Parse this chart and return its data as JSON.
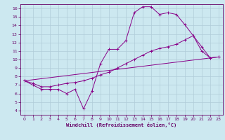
{
  "xlabel": "Windchill (Refroidissement éolien,°C)",
  "background_color": "#cce8f0",
  "grid_color": "#b0ccd8",
  "line_color": "#880088",
  "spine_color": "#660066",
  "xlim": [
    -0.5,
    23.5
  ],
  "ylim": [
    3.5,
    16.5
  ],
  "yticks": [
    4,
    5,
    6,
    7,
    8,
    9,
    10,
    11,
    12,
    13,
    14,
    15,
    16
  ],
  "xticks": [
    0,
    1,
    2,
    3,
    4,
    5,
    6,
    7,
    8,
    9,
    10,
    11,
    12,
    13,
    14,
    15,
    16,
    17,
    18,
    19,
    20,
    21,
    22,
    23
  ],
  "series": [
    {
      "x": [
        0,
        1,
        2,
        3,
        4,
        5,
        6,
        7,
        8,
        9,
        10,
        11,
        12,
        13,
        14,
        15,
        16,
        17,
        18,
        19,
        20,
        21,
        22
      ],
      "y": [
        7.5,
        7.0,
        6.5,
        6.5,
        6.5,
        6.0,
        6.5,
        4.2,
        6.3,
        9.5,
        11.2,
        11.2,
        12.2,
        15.5,
        16.2,
        16.2,
        15.3,
        15.5,
        15.3,
        14.1,
        12.8,
        11.0,
        10.2
      ]
    },
    {
      "x": [
        0,
        1,
        2,
        3,
        4,
        5,
        6,
        7,
        8,
        9,
        10,
        11,
        12,
        13,
        14,
        15,
        16,
        17,
        18,
        19,
        20,
        21,
        22,
        23
      ],
      "y": [
        7.5,
        7.2,
        6.8,
        6.8,
        7.0,
        7.2,
        7.3,
        7.5,
        7.8,
        8.2,
        8.5,
        9.0,
        9.5,
        10.0,
        10.5,
        11.0,
        11.3,
        11.5,
        11.8,
        12.3,
        12.8,
        11.5,
        10.2,
        10.3
      ]
    },
    {
      "x": [
        0,
        23
      ],
      "y": [
        7.5,
        10.3
      ]
    }
  ]
}
